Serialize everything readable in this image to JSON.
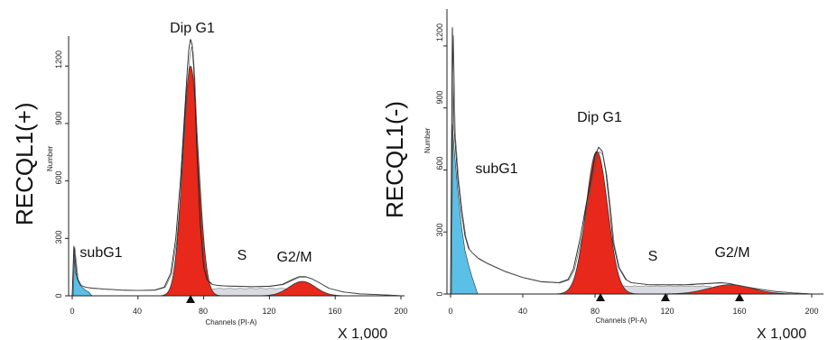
{
  "chart_data": [
    {
      "type": "area",
      "row_label": "RECQL1(+)",
      "ylabel": "Number",
      "xlabel": "Channels (PI-A)",
      "multiplier": "X 1,000",
      "xlim": [
        0,
        200
      ],
      "ylim": [
        0,
        1300
      ],
      "x_ticks": [
        "0",
        "40",
        "80",
        "120",
        "160",
        "200"
      ],
      "y_ticks": [
        "0",
        "300",
        "600",
        "900",
        "1200"
      ],
      "annotations": [
        {
          "text": "Dip G1",
          "x": 74,
          "y": 1410
        },
        {
          "text": "subG1",
          "x": 15,
          "y": 210
        },
        {
          "text": "S",
          "x": 97,
          "y": 170
        },
        {
          "text": "G2/M",
          "x": 124,
          "y": 170
        }
      ],
      "markers_x": [
        72
      ],
      "colors": {
        "g1": "#e8281a",
        "subg1": "#5bc0e8",
        "s": "#c8ccd4",
        "g2m": "#e8281a"
      },
      "series": [
        {
          "name": "subG1",
          "x": [
            0,
            1,
            2,
            4,
            6,
            8,
            10,
            12
          ],
          "y": [
            0,
            235,
            120,
            70,
            45,
            30,
            20,
            0
          ]
        },
        {
          "name": "Dip G1",
          "peak": 72,
          "height": 1200,
          "sigma": 4.8
        },
        {
          "name": "S",
          "from": 78,
          "to": 135
        },
        {
          "name": "G2/M",
          "peak": 140,
          "height": 75,
          "sigma": 8
        }
      ],
      "raw_x": [
        0,
        1,
        3,
        5,
        8,
        12,
        20,
        30,
        40,
        50,
        56,
        60,
        63,
        66,
        68,
        70,
        71,
        72,
        73,
        74,
        75,
        76,
        78,
        80,
        82,
        85,
        88,
        92,
        100,
        110,
        120,
        128,
        134,
        138,
        142,
        146,
        150,
        156,
        165,
        175,
        190,
        200
      ],
      "raw_y": [
        0,
        260,
        90,
        55,
        45,
        40,
        35,
        30,
        28,
        30,
        45,
        120,
        300,
        620,
        900,
        1180,
        1290,
        1340,
        1310,
        1180,
        960,
        720,
        360,
        150,
        85,
        60,
        55,
        52,
        50,
        48,
        50,
        60,
        85,
        100,
        100,
        88,
        70,
        40,
        20,
        10,
        5,
        0
      ]
    },
    {
      "type": "area",
      "row_label": "RECQL1(-)",
      "ylabel": "Number",
      "xlabel": "Channels (PI-A)",
      "multiplier": "X 1,000",
      "xlim": [
        0,
        200
      ],
      "ylim": [
        0,
        1300
      ],
      "x_ticks": [
        "0",
        "40",
        "80",
        "120",
        "160",
        "200"
      ],
      "y_ticks": [
        "0",
        "300",
        "600",
        "900",
        "1200"
      ],
      "annotations": [
        {
          "text": "Dip G1",
          "x": 83,
          "y": 880
        },
        {
          "text": "subG1",
          "x": 26,
          "y": 600
        },
        {
          "text": "S",
          "x": 113,
          "y": 160
        },
        {
          "text": "G2/M",
          "x": 152,
          "y": 185
        }
      ],
      "markers_x": [
        83,
        119,
        160
      ],
      "colors": {
        "g1": "#e8281a",
        "subg1": "#5bc0e8",
        "s": "#c8ccd4",
        "g2m": "#e8281a"
      },
      "series": [
        {
          "name": "subG1",
          "x": [
            0,
            1,
            2,
            4,
            6,
            8,
            10,
            12,
            15
          ],
          "y": [
            0,
            820,
            700,
            500,
            330,
            210,
            140,
            80,
            0
          ]
        },
        {
          "name": "Dip G1",
          "peak": 81,
          "height": 690,
          "sigma": 6
        },
        {
          "name": "S",
          "from": 88,
          "to": 145
        },
        {
          "name": "G2/M",
          "peak": 155,
          "height": 45,
          "sigma": 12
        }
      ],
      "raw_x": [
        0,
        1,
        2,
        4,
        6,
        8,
        10,
        12,
        15,
        20,
        30,
        40,
        50,
        60,
        65,
        68,
        72,
        75,
        78,
        80,
        82,
        84,
        86,
        88,
        90,
        93,
        97,
        100,
        105,
        110,
        120,
        130,
        140,
        150,
        155,
        160,
        170,
        180,
        190,
        200
      ],
      "raw_y": [
        0,
        1290,
        800,
        560,
        400,
        280,
        220,
        200,
        175,
        150,
        110,
        80,
        60,
        55,
        70,
        120,
        280,
        430,
        560,
        670,
        710,
        690,
        590,
        430,
        250,
        130,
        70,
        55,
        50,
        45,
        45,
        45,
        50,
        55,
        50,
        40,
        25,
        12,
        5,
        0
      ]
    }
  ]
}
